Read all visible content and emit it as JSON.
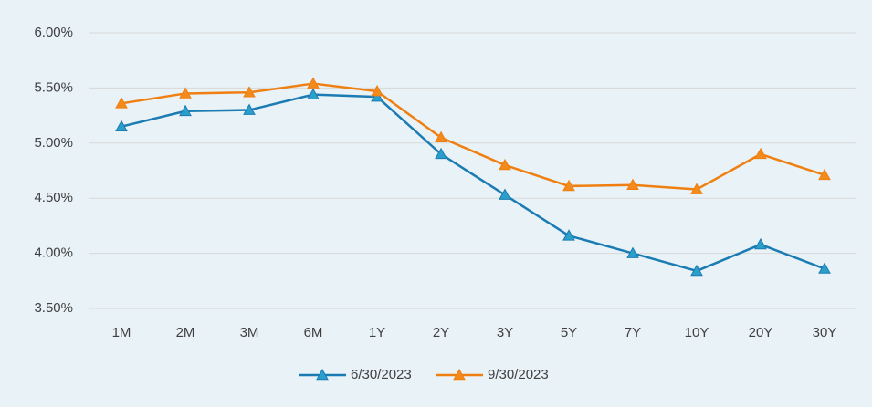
{
  "chart_data": {
    "type": "line",
    "categories": [
      "1M",
      "2M",
      "3M",
      "6M",
      "1Y",
      "2Y",
      "3Y",
      "5Y",
      "7Y",
      "10Y",
      "20Y",
      "30Y"
    ],
    "series": [
      {
        "name": "6/30/2023",
        "color": "#1b7bb3",
        "values": [
          5.15,
          5.29,
          5.3,
          5.44,
          5.42,
          4.9,
          4.53,
          4.16,
          4.0,
          3.84,
          4.08,
          3.86
        ]
      },
      {
        "name": "9/30/2023",
        "color": "#f07f12",
        "values": [
          5.36,
          5.45,
          5.46,
          5.54,
          5.47,
          5.05,
          4.8,
          4.61,
          4.62,
          4.58,
          4.9,
          4.71
        ]
      }
    ],
    "ylim": [
      3.5,
      6.0
    ],
    "yticks": [
      {
        "value": 3.5,
        "label": "3.50%"
      },
      {
        "value": 4.0,
        "label": "4.00%"
      },
      {
        "value": 4.5,
        "label": "4.50%"
      },
      {
        "value": 5.0,
        "label": "5.00%"
      },
      {
        "value": 5.5,
        "label": "5.50%"
      },
      {
        "value": 6.0,
        "label": "6.00%"
      }
    ],
    "grid": true,
    "legend": "bottom"
  }
}
